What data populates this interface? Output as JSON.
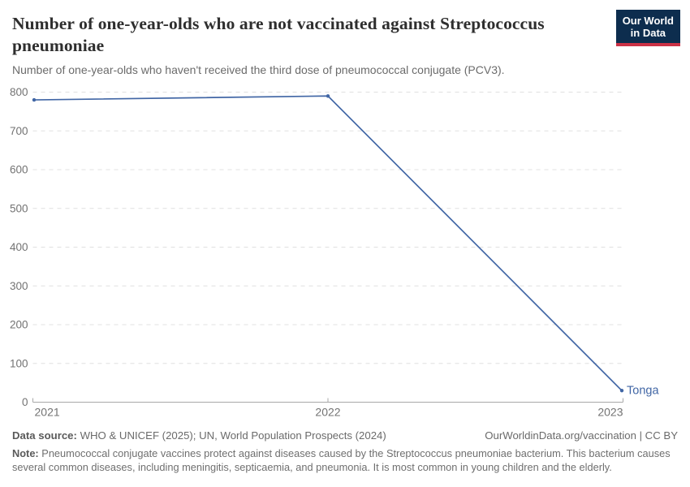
{
  "header": {
    "title": "Number of one-year-olds who are not vaccinated against Streptococcus pneumoniae",
    "subtitle": "Number of one-year-olds who haven't received the third dose of pneumococcal conjugate (PCV3).",
    "logo": {
      "line1": "Our World",
      "line2": "in Data",
      "bg_color": "#0d2d4e",
      "bar_color": "#cb3146"
    }
  },
  "chart_data": {
    "type": "line",
    "x": [
      2021,
      2022,
      2023
    ],
    "series": [
      {
        "name": "Tonga",
        "color": "#4166a5",
        "values": [
          780,
          790,
          30
        ]
      }
    ],
    "ylim": [
      0,
      800
    ],
    "ytick_step": 100,
    "grid": "horizontal-dashed",
    "legend": "entity-label-at-line-end",
    "axis_color": "#a8a8a8",
    "grid_color": "#e0e0e0",
    "tick_label_color": "#737373"
  },
  "footer": {
    "source_label": "Data source:",
    "source_text": "WHO & UNICEF (2025); UN, World Population Prospects (2024)",
    "cite": "OurWorldinData.org/vaccination | CC BY",
    "note_label": "Note:",
    "note_text": "Pneumococcal conjugate vaccines protect against diseases caused by the Streptococcus pneumoniae bacterium. This bacterium causes several common diseases, including meningitis, septicaemia, and pneumonia. It is most common in young children and the elderly."
  }
}
